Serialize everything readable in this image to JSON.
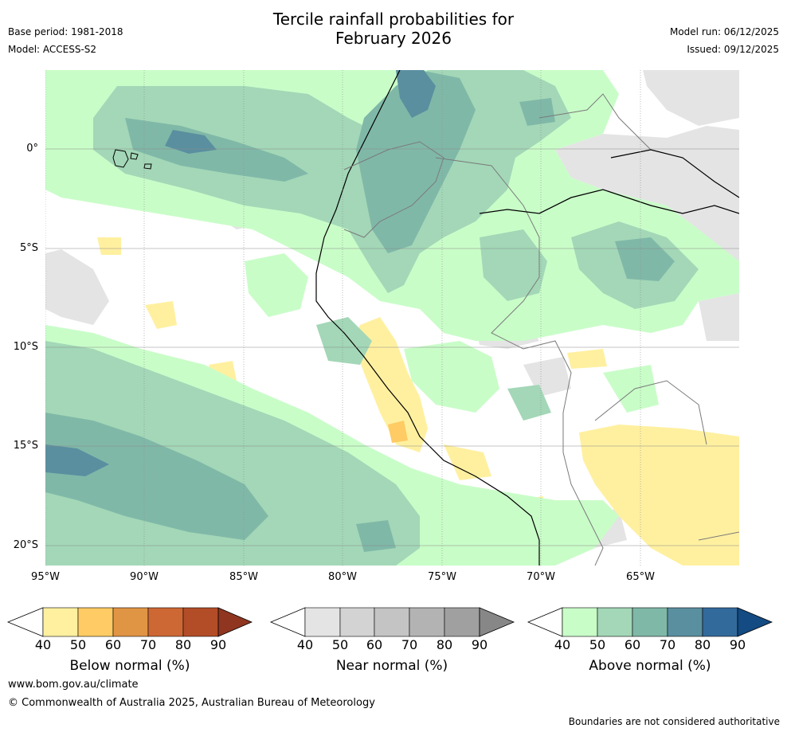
{
  "header": {
    "title_line1": "Tercile rainfall probabilities for",
    "title_line2": "February 2026",
    "base_period": "Base period: 1981-2018",
    "model": "Model: ACCESS-S2",
    "model_run": "Model run: 06/12/2025",
    "issued": "Issued: 09/12/2025"
  },
  "map": {
    "lat_labels": [
      "0°",
      "5°S",
      "10°S",
      "15°S",
      "20°S"
    ],
    "lon_labels": [
      "95°W",
      "90°W",
      "85°W",
      "80°W",
      "75°W",
      "70°W",
      "65°W"
    ],
    "lat_range": [
      -21,
      4
    ],
    "lon_range": [
      -95,
      -60
    ]
  },
  "colorbars": [
    {
      "name": "below",
      "label": "Below normal (%)",
      "ticks": [
        "40",
        "50",
        "60",
        "70",
        "80",
        "90"
      ],
      "colors": [
        "#fff0a0",
        "#fecb64",
        "#e09545",
        "#cd6834",
        "#b34d28",
        "#903520"
      ]
    },
    {
      "name": "near",
      "label": "Near normal (%)",
      "ticks": [
        "40",
        "50",
        "60",
        "70",
        "80",
        "90"
      ],
      "colors": [
        "#e4e4e4",
        "#d3d3d3",
        "#c4c4c4",
        "#b3b3b3",
        "#a0a0a0",
        "#878787"
      ]
    },
    {
      "name": "above",
      "label": "Above normal (%)",
      "ticks": [
        "40",
        "50",
        "60",
        "70",
        "80",
        "90"
      ],
      "colors": [
        "#c9fdc8",
        "#a3d7b7",
        "#80b8a8",
        "#5a8fa0",
        "#336a9c",
        "#134b82"
      ]
    }
  ],
  "footer": {
    "website": "www.bom.gov.au/climate",
    "copyright": "© Commonwealth of Australia 2025, Australian Bureau of Meteorology",
    "disclaimer": "Boundaries are not considered authoritative"
  }
}
